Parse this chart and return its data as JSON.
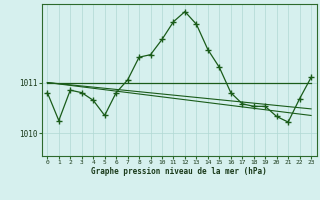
{
  "xlabel": "Graphe pression niveau de la mer (hPa)",
  "background_color": "#d6f0ee",
  "plot_bg_color": "#d6f0ee",
  "grid_color": "#b0d8d4",
  "line_color": "#1a5c1a",
  "xlim": [
    -0.5,
    23.5
  ],
  "ylim": [
    1009.55,
    1012.55
  ],
  "yticks": [
    1010,
    1011
  ],
  "xticks": [
    0,
    1,
    2,
    3,
    4,
    5,
    6,
    7,
    8,
    9,
    10,
    11,
    12,
    13,
    14,
    15,
    16,
    17,
    18,
    19,
    20,
    21,
    22,
    23
  ],
  "series1_x": [
    0,
    1,
    2,
    3,
    4,
    5,
    6,
    7,
    8,
    9,
    10,
    11,
    12,
    13,
    14,
    15,
    16,
    17,
    18,
    19,
    20,
    21,
    22,
    23
  ],
  "series1_y": [
    1010.8,
    1010.25,
    1010.85,
    1010.8,
    1010.65,
    1010.35,
    1010.8,
    1011.05,
    1011.5,
    1011.55,
    1011.85,
    1012.2,
    1012.4,
    1012.15,
    1011.65,
    1011.3,
    1010.8,
    1010.58,
    1010.53,
    1010.53,
    1010.33,
    1010.22,
    1010.68,
    1011.1
  ],
  "series2_x": [
    0,
    23
  ],
  "series2_y": [
    1011.0,
    1011.0
  ],
  "series3_x": [
    0,
    23
  ],
  "series3_y": [
    1011.0,
    1010.48
  ],
  "series4_x": [
    0,
    23
  ],
  "series4_y": [
    1011.0,
    1010.35
  ],
  "figsize": [
    3.2,
    2.0
  ],
  "dpi": 100
}
